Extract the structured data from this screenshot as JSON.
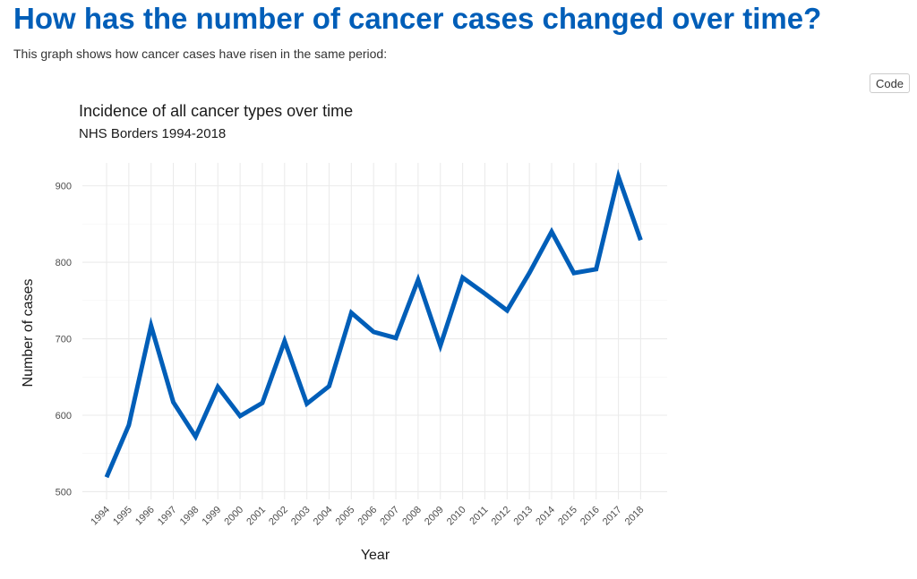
{
  "header": {
    "title": "How has the number of cancer cases changed over time?",
    "intro": "This graph shows how cancer cases have risen in the same period:"
  },
  "toolbar": {
    "code_label": "Code"
  },
  "colors": {
    "heading": "#005eb8",
    "series": "#005eb8"
  },
  "chart_data": {
    "type": "line",
    "title": "Incidence of all cancer types over time",
    "subtitle": "NHS Borders 1994-2018",
    "xlabel": "Year",
    "ylabel": "Number of cases",
    "x": [
      "1994",
      "1995",
      "1996",
      "1997",
      "1998",
      "1999",
      "2000",
      "2001",
      "2002",
      "2003",
      "2004",
      "2005",
      "2006",
      "2007",
      "2008",
      "2009",
      "2010",
      "2011",
      "2012",
      "2013",
      "2014",
      "2015",
      "2016",
      "2017",
      "2018"
    ],
    "series": [
      {
        "values": [
          519,
          587,
          717,
          617,
          572,
          637,
          599,
          616,
          697,
          615,
          638,
          734,
          709,
          701,
          777,
          691,
          780,
          759,
          737,
          786,
          840,
          786,
          791,
          912,
          829
        ]
      }
    ],
    "ylim": [
      490,
      930
    ],
    "yticks": [
      500,
      600,
      700,
      800,
      900
    ],
    "grid": true,
    "legend": "none"
  }
}
